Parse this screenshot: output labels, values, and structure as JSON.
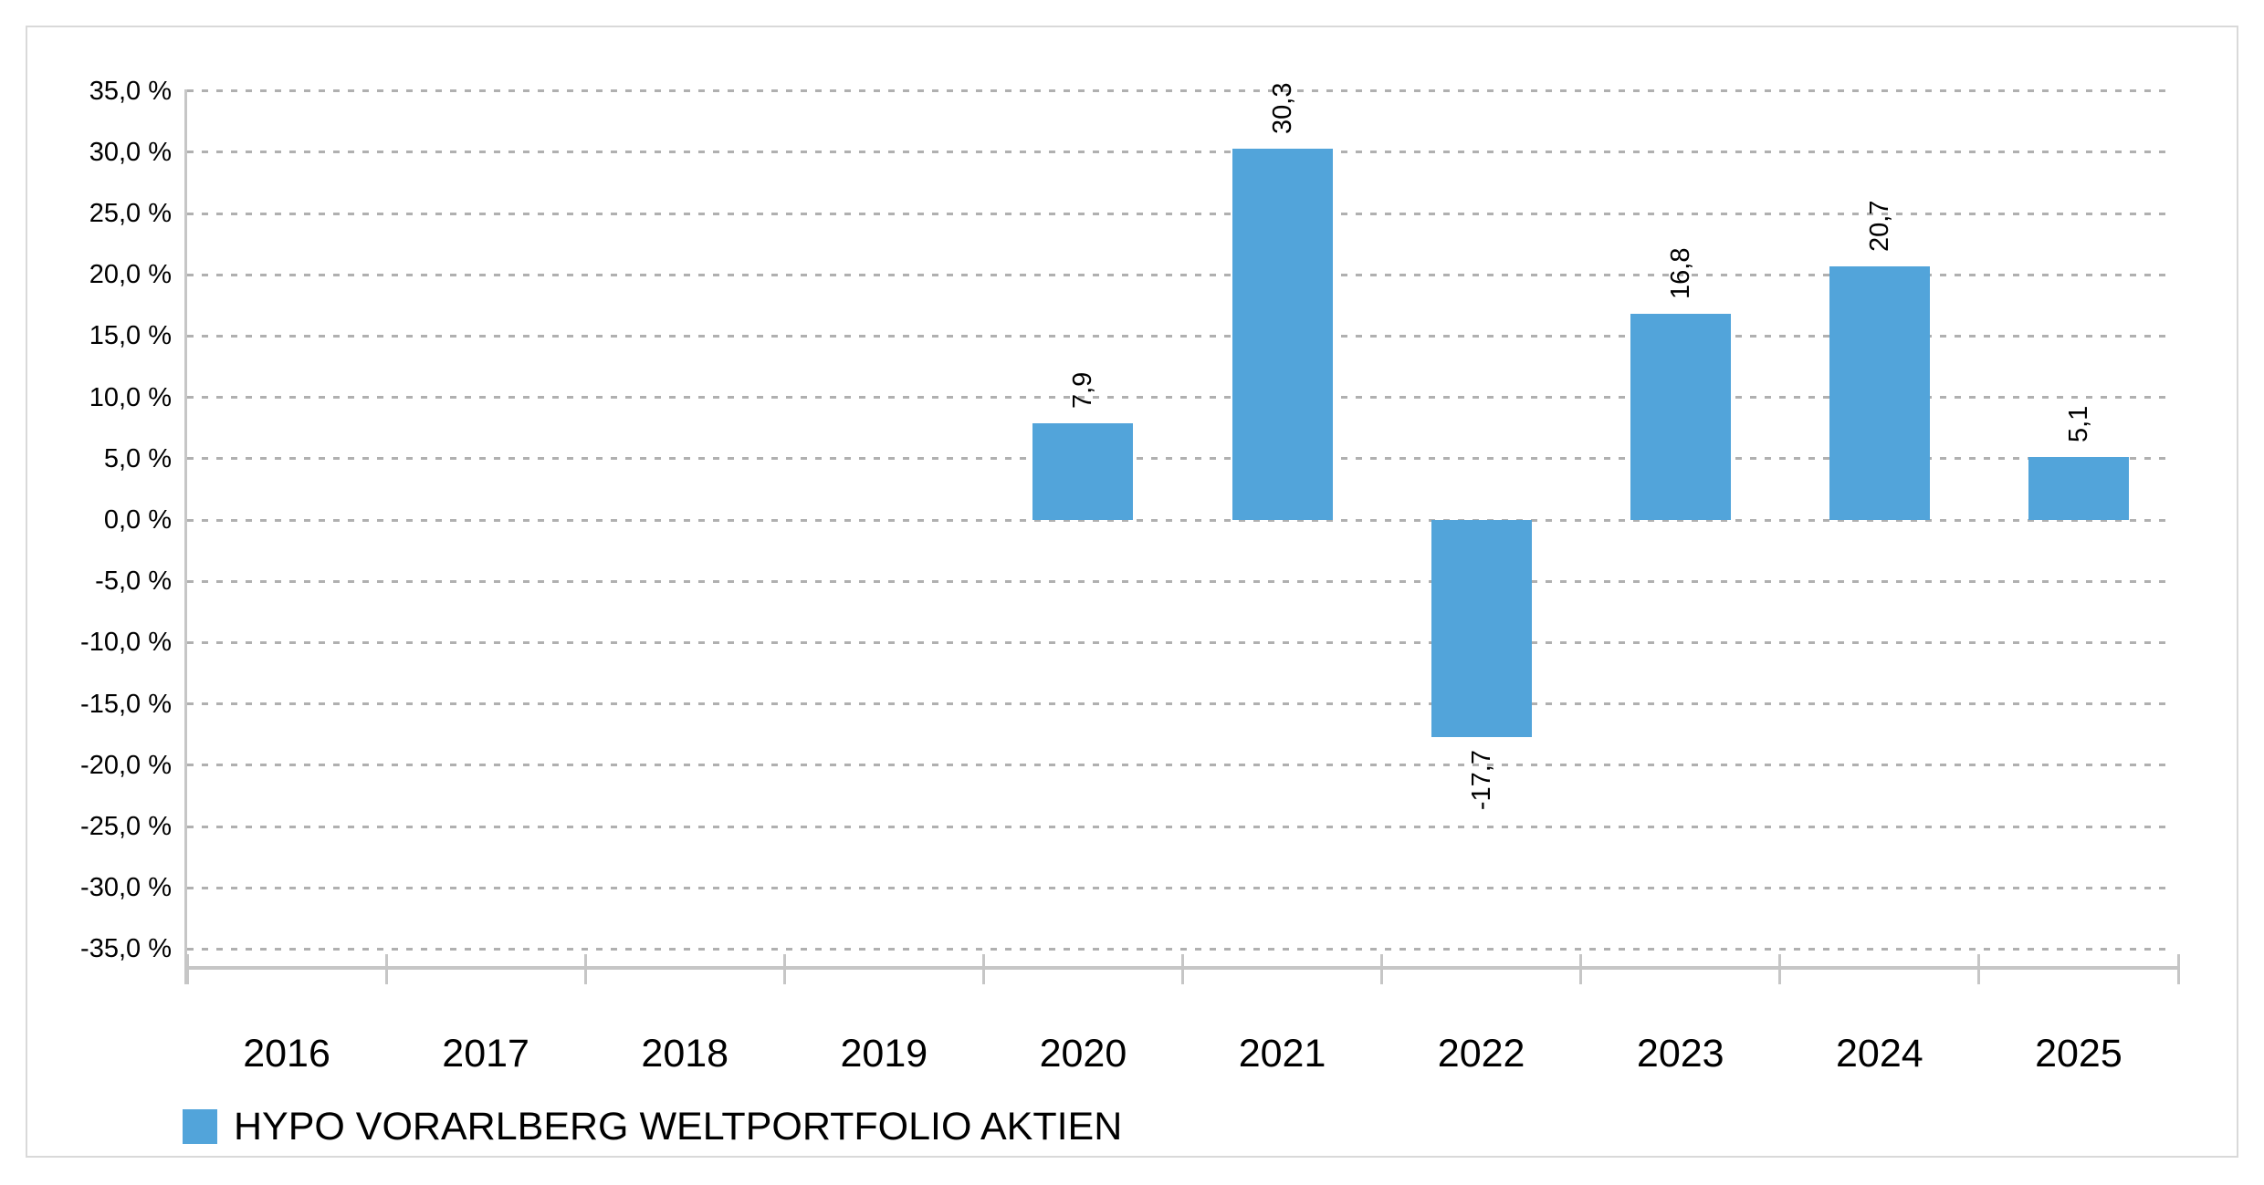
{
  "chart_data": {
    "type": "bar",
    "title": "",
    "categories": [
      "2016",
      "2017",
      "2018",
      "2019",
      "2020",
      "2021",
      "2022",
      "2023",
      "2024",
      "2025"
    ],
    "series": [
      {
        "name": "HYPO VORARLBERG WELTPORTFOLIO AKTIEN",
        "values": [
          null,
          null,
          null,
          null,
          7.9,
          30.3,
          -17.7,
          16.8,
          20.7,
          5.1
        ],
        "value_labels": [
          null,
          null,
          null,
          null,
          "7,9",
          "30,3",
          "-17,7",
          "16,8",
          "20,7",
          "5,1"
        ]
      }
    ],
    "ylim": [
      -35,
      35
    ],
    "ytick_step": 5,
    "ytick_labels": [
      "35,0 %",
      "30,0 %",
      "25,0 %",
      "20,0 %",
      "15,0 %",
      "10,0 %",
      "5,0 %",
      "0,0 %",
      "-5,0 %",
      "-10,0 %",
      "-15,0 %",
      "-20,0 %",
      "-25,0 %",
      "-30,0 %",
      "-35,0 %"
    ],
    "grid": "dashed-horizontal",
    "legend_position": "bottom-left",
    "value_label_rotation": -90,
    "colors": {
      "bar": "#52a4da",
      "gridline": "#b0b0b0",
      "axis": "#c6c6c6",
      "border": "#d9d9d9",
      "text": "#000000",
      "background": "#ffffff"
    }
  }
}
